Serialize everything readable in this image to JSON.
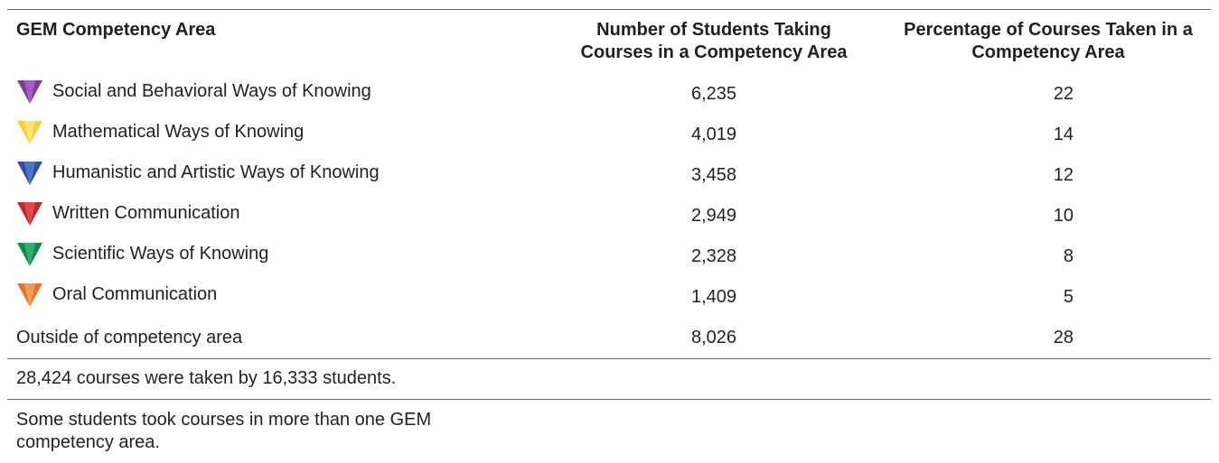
{
  "table": {
    "headers": [
      "GEM Competency Area",
      "Number of Students Taking Courses in a Competency Area",
      "Percentage of Courses Taken in a Competency Area"
    ],
    "rows": [
      [
        "Social and Behavioral Ways of Knowing",
        "6,235",
        "22"
      ],
      [
        "Mathematical Ways of Knowing",
        "4,019",
        "14"
      ],
      [
        "Humanistic and Artistic Ways of Knowing",
        "3,458",
        "12"
      ],
      [
        "Written Communication",
        "2,949",
        "10"
      ],
      [
        "Scientific Ways of Knowing",
        "2,328",
        "8"
      ],
      [
        "Oral Communication",
        "1,409",
        "5"
      ],
      [
        "Outside of competency area",
        "8,026",
        "28"
      ]
    ],
    "notes": [
      "28,424 courses were taken by 16,333 students.",
      "Some students took courses in more than one GEM competency area."
    ]
  }
}
